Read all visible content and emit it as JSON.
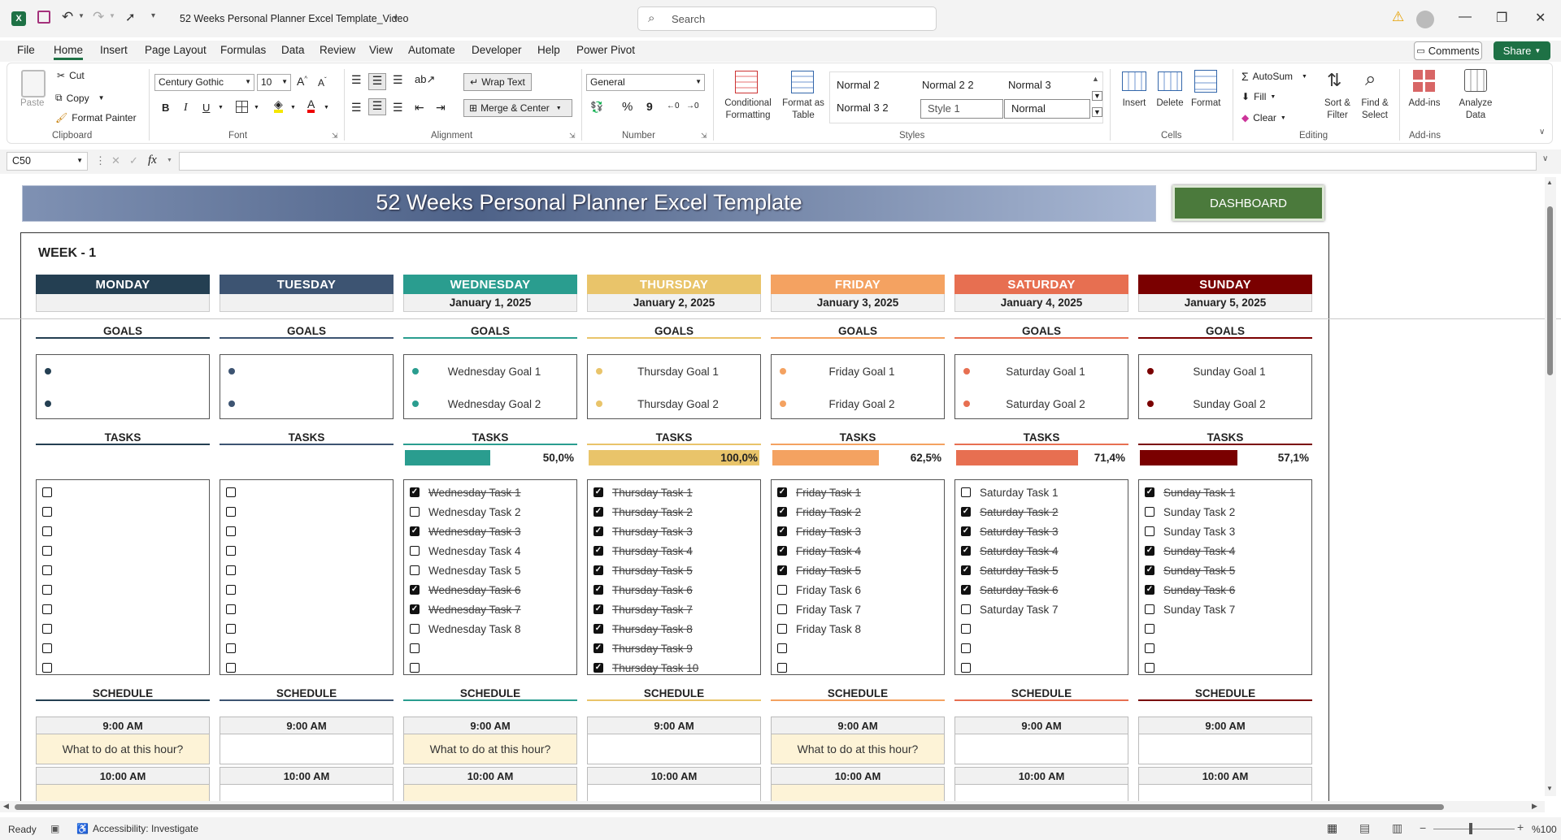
{
  "window": {
    "title": "52 Weeks Personal Planner Excel Template_Video",
    "search_placeholder": "Search",
    "minimize": "—",
    "restore": "❐",
    "close": "✕"
  },
  "menu": [
    "File",
    "Home",
    "Insert",
    "Page Layout",
    "Formulas",
    "Data",
    "Review",
    "View",
    "Automate",
    "Developer",
    "Help",
    "Power Pivot"
  ],
  "menu_right": {
    "comments": "Comments",
    "share": "Share"
  },
  "ribbon": {
    "clipboard": {
      "paste": "Paste",
      "cut": "Cut",
      "copy": "Copy",
      "format_painter": "Format Painter",
      "label": "Clipboard"
    },
    "font": {
      "family": "Century Gothic",
      "size": "10",
      "label": "Font",
      "bold": "B",
      "italic": "I",
      "underline": "U"
    },
    "alignment": {
      "wrap": "Wrap Text",
      "merge": "Merge & Center",
      "label": "Alignment"
    },
    "number": {
      "format": "General",
      "label": "Number",
      "percent": "%",
      "comma": "9"
    },
    "styles": {
      "conditional": "Conditional Formatting",
      "format_table": "Format as Table",
      "cells": [
        "Normal 2",
        "Normal 2 2",
        "Normal 3",
        "Normal 3 2",
        "Style 1",
        "Normal"
      ],
      "label": "Styles"
    },
    "cells": {
      "insert": "Insert",
      "delete": "Delete",
      "format": "Format",
      "label": "Cells"
    },
    "editing": {
      "autosum": "AutoSum",
      "fill": "Fill",
      "clear": "Clear",
      "sort": "Sort & Filter",
      "find": "Find & Select",
      "label": "Editing"
    },
    "addins": {
      "addins": "Add-ins",
      "analyze": "Analyze Data",
      "label": "Add-ins"
    }
  },
  "formula": {
    "name_box": "C50",
    "fx": "fx",
    "value": ""
  },
  "sheet": {
    "title": "52 Weeks Personal Planner Excel Template",
    "dashboard": "DASHBOARD",
    "week": "WEEK - 1",
    "goals_label": "GOALS",
    "tasks_label": "TASKS",
    "schedule_label": "SCHEDULE",
    "days": [
      {
        "name": "MONDAY",
        "date": "",
        "color": "#243f52",
        "goals": [
          "",
          ""
        ],
        "progress": null,
        "pct": "",
        "tasks": [
          [
            "",
            0
          ],
          [
            "",
            0
          ],
          [
            "",
            0
          ],
          [
            "",
            0
          ],
          [
            "",
            0
          ],
          [
            "",
            0
          ],
          [
            "",
            0
          ],
          [
            "",
            0
          ],
          [
            "",
            0
          ],
          [
            "",
            0
          ]
        ],
        "slot_text": "What to do at this hour?",
        "slot_bg": "#fdf3d7"
      },
      {
        "name": "TUESDAY",
        "date": "",
        "color": "#3d5472",
        "goals": [
          "",
          ""
        ],
        "progress": null,
        "pct": "",
        "tasks": [
          [
            "",
            0
          ],
          [
            "",
            0
          ],
          [
            "",
            0
          ],
          [
            "",
            0
          ],
          [
            "",
            0
          ],
          [
            "",
            0
          ],
          [
            "",
            0
          ],
          [
            "",
            0
          ],
          [
            "",
            0
          ],
          [
            "",
            0
          ]
        ],
        "slot_text": "",
        "slot_bg": "#ffffff"
      },
      {
        "name": "WEDNESDAY",
        "date": "January 1, 2025",
        "color": "#2a9d8f",
        "goals": [
          "Wednesday Goal 1",
          "Wednesday Goal 2"
        ],
        "progress": 0.5,
        "pct": "50,0%",
        "tasks": [
          [
            "Wednesday Task 1",
            1
          ],
          [
            "Wednesday Task 2",
            0
          ],
          [
            "Wednesday Task 3",
            1
          ],
          [
            "Wednesday Task 4",
            0
          ],
          [
            "Wednesday Task 5",
            0
          ],
          [
            "Wednesday Task 6",
            1
          ],
          [
            "Wednesday Task 7",
            1
          ],
          [
            "Wednesday Task 8",
            0
          ],
          [
            "",
            0
          ],
          [
            "",
            0
          ]
        ],
        "slot_text": "What to do at this hour?",
        "slot_bg": "#fdf3d7"
      },
      {
        "name": "THURSDAY",
        "date": "January 2, 2025",
        "color": "#e9c46a",
        "goals": [
          "Thursday Goal 1",
          "Thursday Goal 2"
        ],
        "progress": 1.0,
        "pct": "100,0%",
        "tasks": [
          [
            "Thursday Task 1",
            1
          ],
          [
            "Thursday Task 2",
            1
          ],
          [
            "Thursday Task 3",
            1
          ],
          [
            "Thursday Task 4",
            1
          ],
          [
            "Thursday Task 5",
            1
          ],
          [
            "Thursday Task 6",
            1
          ],
          [
            "Thursday Task 7",
            1
          ],
          [
            "Thursday Task 8",
            1
          ],
          [
            "Thursday Task 9",
            1
          ],
          [
            "Thursday Task 10",
            1
          ]
        ],
        "slot_text": "",
        "slot_bg": "#ffffff"
      },
      {
        "name": "FRIDAY",
        "date": "January 3, 2025",
        "color": "#f4a261",
        "goals": [
          "Friday Goal 1",
          "Friday Goal 2"
        ],
        "progress": 0.625,
        "pct": "62,5%",
        "tasks": [
          [
            "Friday Task 1",
            1
          ],
          [
            "Friday Task 2",
            1
          ],
          [
            "Friday Task 3",
            1
          ],
          [
            "Friday Task 4",
            1
          ],
          [
            "Friday Task 5",
            1
          ],
          [
            "Friday Task 6",
            0
          ],
          [
            "Friday Task 7",
            0
          ],
          [
            "Friday Task 8",
            0
          ],
          [
            "",
            0
          ],
          [
            "",
            0
          ]
        ],
        "slot_text": "What to do at this hour?",
        "slot_bg": "#fdf3d7"
      },
      {
        "name": "SATURDAY",
        "date": "January 4, 2025",
        "color": "#e76f51",
        "goals": [
          "Saturday Goal 1",
          "Saturday Goal 2"
        ],
        "progress": 0.714,
        "pct": "71,4%",
        "tasks": [
          [
            "Saturday Task 1",
            0
          ],
          [
            "Saturday Task 2",
            1
          ],
          [
            "Saturday Task 3",
            1
          ],
          [
            "Saturday Task 4",
            1
          ],
          [
            "Saturday Task 5",
            1
          ],
          [
            "Saturday Task 6",
            1
          ],
          [
            "Saturday Task 7",
            0
          ],
          [
            "",
            0
          ],
          [
            "",
            0
          ],
          [
            "",
            0
          ]
        ],
        "slot_text": "",
        "slot_bg": "#ffffff"
      },
      {
        "name": "SUNDAY",
        "date": "January 5, 2025",
        "color": "#7a0000",
        "goals": [
          "Sunday Goal 1",
          "Sunday Goal 2"
        ],
        "progress": 0.571,
        "pct": "57,1%",
        "tasks": [
          [
            "Sunday Task 1",
            1
          ],
          [
            "Sunday Task 2",
            0
          ],
          [
            "Sunday Task 3",
            0
          ],
          [
            "Sunday Task 4",
            1
          ],
          [
            "Sunday Task 5",
            1
          ],
          [
            "Sunday Task 6",
            1
          ],
          [
            "Sunday Task 7",
            0
          ],
          [
            "",
            0
          ],
          [
            "",
            0
          ],
          [
            "",
            0
          ]
        ],
        "slot_text": "",
        "slot_bg": "#ffffff"
      }
    ],
    "times": [
      "9:00 AM",
      "10:00 AM"
    ]
  },
  "status": {
    "ready": "Ready",
    "accessibility": "Accessibility: Investigate",
    "zoom": "%100"
  }
}
